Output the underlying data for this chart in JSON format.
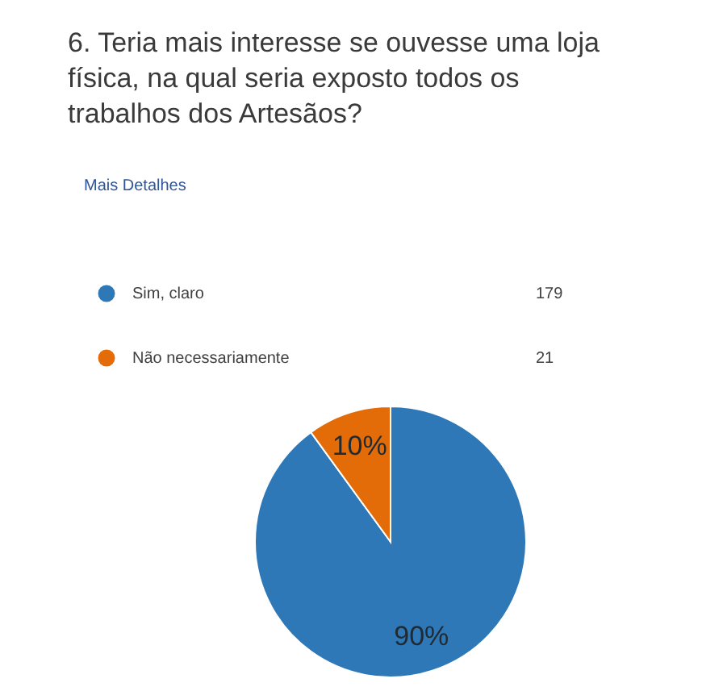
{
  "chart_data": {
    "type": "pie",
    "title": "6. Teria mais interesse se ouvesse uma loja física, na qual seria exposto todos os trabalhos dos Artesãos?",
    "annotations": [
      "Mais Detalhes",
      "179",
      "21"
    ],
    "categories": [
      "Sim, claro",
      "Não necessariamente"
    ],
    "values": [
      90,
      10
    ],
    "value_labels": [
      "90%",
      "10%"
    ],
    "colors": [
      "#2f78b8",
      "#e36c09"
    ],
    "legend": "top left"
  }
}
